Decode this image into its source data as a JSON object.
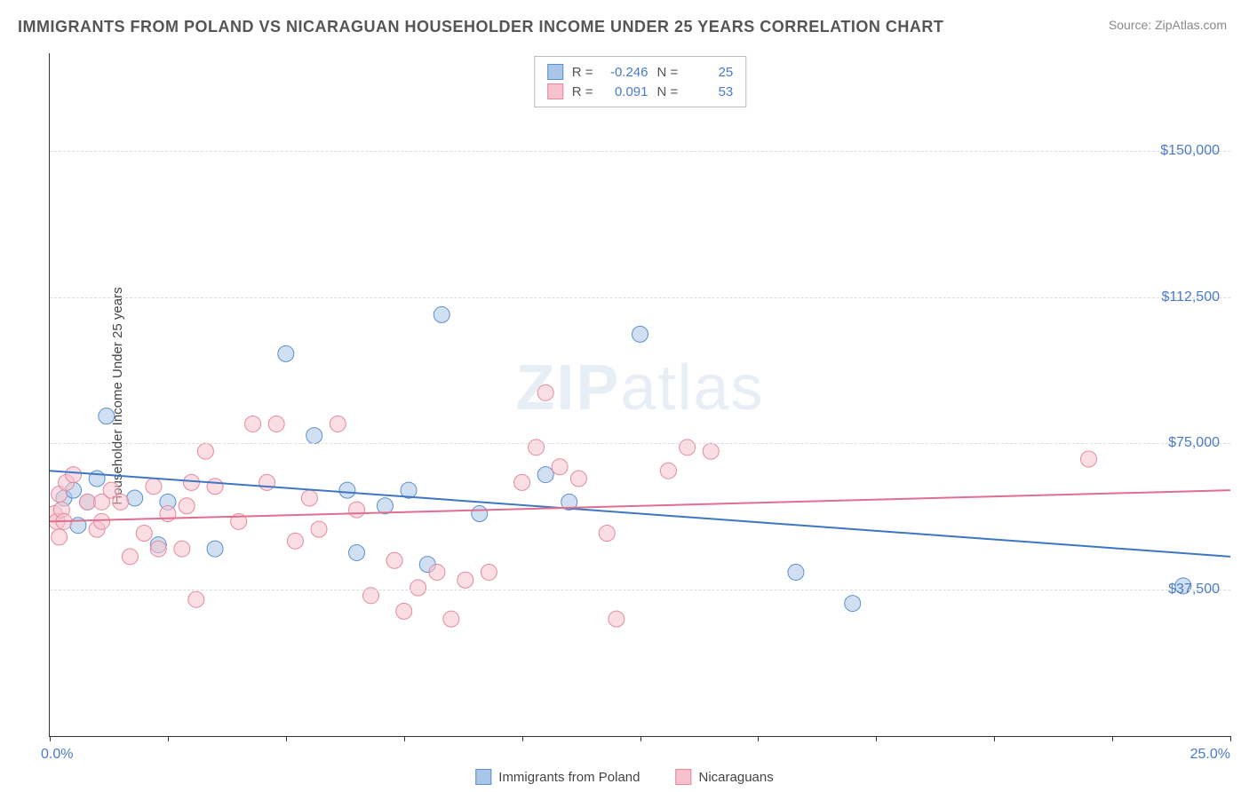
{
  "title": "IMMIGRANTS FROM POLAND VS NICARAGUAN HOUSEHOLDER INCOME UNDER 25 YEARS CORRELATION CHART",
  "source": "Source: ZipAtlas.com",
  "watermark_bold": "ZIP",
  "watermark_light": "atlas",
  "ylabel": "Householder Income Under 25 years",
  "chart": {
    "type": "scatter",
    "xlim": [
      0,
      25
    ],
    "ylim": [
      0,
      175000
    ],
    "ytick_values": [
      37500,
      75000,
      112500,
      150000
    ],
    "ytick_labels": [
      "$37,500",
      "$75,000",
      "$112,500",
      "$150,000"
    ],
    "xtick_values": [
      0,
      2.5,
      5,
      7.5,
      10,
      12.5,
      15,
      17.5,
      20,
      22.5,
      25
    ],
    "xtick_label_left": "0.0%",
    "xtick_label_right": "25.0%",
    "background_color": "#ffffff",
    "grid_color": "#dcdcdc",
    "axis_color": "#333333",
    "marker_radius": 9,
    "marker_opacity": 0.55,
    "line_width": 2,
    "series": [
      {
        "name": "Immigrants from Poland",
        "color_fill": "#a9c6e8",
        "color_stroke": "#5b8fc9",
        "line_color": "#3d76c2",
        "R": "-0.246",
        "N": "25",
        "trend_y_at_x0": 68000,
        "trend_y_at_x25": 46000,
        "points": [
          {
            "x": 0.3,
            "y": 61000
          },
          {
            "x": 0.5,
            "y": 63000
          },
          {
            "x": 0.6,
            "y": 54000
          },
          {
            "x": 0.8,
            "y": 60000
          },
          {
            "x": 1.0,
            "y": 66000
          },
          {
            "x": 1.2,
            "y": 82000
          },
          {
            "x": 1.8,
            "y": 61000
          },
          {
            "x": 2.3,
            "y": 49000
          },
          {
            "x": 2.5,
            "y": 60000
          },
          {
            "x": 3.5,
            "y": 48000
          },
          {
            "x": 5.0,
            "y": 98000
          },
          {
            "x": 5.6,
            "y": 77000
          },
          {
            "x": 6.3,
            "y": 63000
          },
          {
            "x": 6.5,
            "y": 47000
          },
          {
            "x": 7.1,
            "y": 59000
          },
          {
            "x": 7.6,
            "y": 63000
          },
          {
            "x": 8.0,
            "y": 44000
          },
          {
            "x": 8.3,
            "y": 108000
          },
          {
            "x": 9.1,
            "y": 57000
          },
          {
            "x": 10.5,
            "y": 67000
          },
          {
            "x": 11.0,
            "y": 60000
          },
          {
            "x": 12.5,
            "y": 103000
          },
          {
            "x": 15.8,
            "y": 42000
          },
          {
            "x": 17.0,
            "y": 34000
          },
          {
            "x": 24.0,
            "y": 38500
          }
        ]
      },
      {
        "name": "Nicaraguans",
        "color_fill": "#f5c2cd",
        "color_stroke": "#e389a0",
        "line_color": "#e16d8f",
        "R": "0.091",
        "N": "53",
        "trend_y_at_x0": 55000,
        "trend_y_at_x25": 63000,
        "points": [
          {
            "x": 0.1,
            "y": 57000
          },
          {
            "x": 0.15,
            "y": 55000
          },
          {
            "x": 0.2,
            "y": 51000
          },
          {
            "x": 0.2,
            "y": 62000
          },
          {
            "x": 0.25,
            "y": 58000
          },
          {
            "x": 0.3,
            "y": 55000
          },
          {
            "x": 0.35,
            "y": 65000
          },
          {
            "x": 0.5,
            "y": 67000
          },
          {
            "x": 0.8,
            "y": 60000
          },
          {
            "x": 1.0,
            "y": 53000
          },
          {
            "x": 1.1,
            "y": 55000
          },
          {
            "x": 1.1,
            "y": 60000
          },
          {
            "x": 1.3,
            "y": 63000
          },
          {
            "x": 1.5,
            "y": 60000
          },
          {
            "x": 1.7,
            "y": 46000
          },
          {
            "x": 2.0,
            "y": 52000
          },
          {
            "x": 2.2,
            "y": 64000
          },
          {
            "x": 2.3,
            "y": 48000
          },
          {
            "x": 2.5,
            "y": 57000
          },
          {
            "x": 2.8,
            "y": 48000
          },
          {
            "x": 2.9,
            "y": 59000
          },
          {
            "x": 3.0,
            "y": 65000
          },
          {
            "x": 3.1,
            "y": 35000
          },
          {
            "x": 3.3,
            "y": 73000
          },
          {
            "x": 3.5,
            "y": 64000
          },
          {
            "x": 4.0,
            "y": 55000
          },
          {
            "x": 4.3,
            "y": 80000
          },
          {
            "x": 4.6,
            "y": 65000
          },
          {
            "x": 4.8,
            "y": 80000
          },
          {
            "x": 5.2,
            "y": 50000
          },
          {
            "x": 5.5,
            "y": 61000
          },
          {
            "x": 5.7,
            "y": 53000
          },
          {
            "x": 6.1,
            "y": 80000
          },
          {
            "x": 6.5,
            "y": 58000
          },
          {
            "x": 6.8,
            "y": 36000
          },
          {
            "x": 7.3,
            "y": 45000
          },
          {
            "x": 7.5,
            "y": 32000
          },
          {
            "x": 7.8,
            "y": 38000
          },
          {
            "x": 8.2,
            "y": 42000
          },
          {
            "x": 8.5,
            "y": 30000
          },
          {
            "x": 8.8,
            "y": 40000
          },
          {
            "x": 9.3,
            "y": 42000
          },
          {
            "x": 10.0,
            "y": 65000
          },
          {
            "x": 10.3,
            "y": 74000
          },
          {
            "x": 10.5,
            "y": 88000
          },
          {
            "x": 10.8,
            "y": 69000
          },
          {
            "x": 11.2,
            "y": 66000
          },
          {
            "x": 11.8,
            "y": 52000
          },
          {
            "x": 12.0,
            "y": 30000
          },
          {
            "x": 13.1,
            "y": 68000
          },
          {
            "x": 13.5,
            "y": 74000
          },
          {
            "x": 14.0,
            "y": 73000
          },
          {
            "x": 22.0,
            "y": 71000
          }
        ]
      }
    ]
  },
  "legend_top": {
    "r_label": "R =",
    "n_label": "N ="
  },
  "legend_bottom": {
    "series1_label": "Immigrants from Poland",
    "series2_label": "Nicaraguans"
  }
}
